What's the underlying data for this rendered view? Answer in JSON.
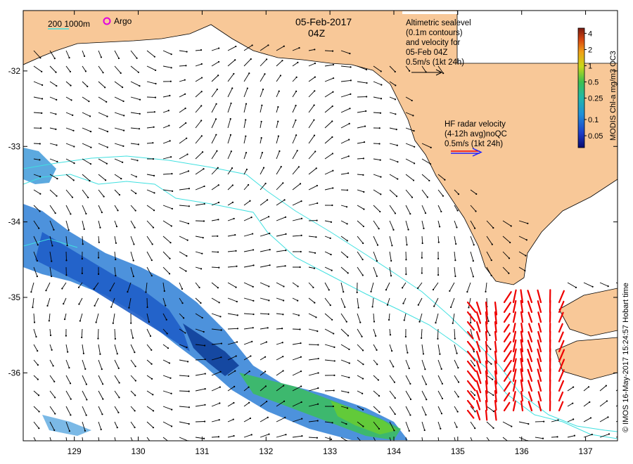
{
  "header": {
    "date": "05-Feb-2017",
    "time": "04Z"
  },
  "legend": {
    "isobath_text": "200  1000m",
    "argo_label": "Argo",
    "altimetry_lines": [
      "Altimetric sealevel",
      "(0.1m contours)",
      "and velocity for",
      "05-Feb 04Z",
      "0.5m/s (1kt 24h)"
    ],
    "hf_lines": [
      "HF radar velocity",
      "(4-12h avg)noQC",
      "0.5m/s (1kt 24h)"
    ]
  },
  "colorbar": {
    "title": "MODIS Chl-a mg/m3 OC3",
    "ticks": [
      "4",
      "2",
      "1",
      "0.5",
      "0.25",
      "0.1",
      "0.05"
    ],
    "tick_values": [
      4,
      2,
      1,
      0.5,
      0.25,
      0.1,
      0.05
    ],
    "range": [
      0.03,
      5
    ]
  },
  "axes": {
    "lon_labels": [
      "129",
      "130",
      "131",
      "132",
      "133",
      "134",
      "135",
      "136",
      "137"
    ],
    "lon_values": [
      129,
      130,
      131,
      132,
      133,
      134,
      135,
      136,
      137
    ],
    "lat_labels": [
      "-32",
      "-33",
      "-34",
      "-35",
      "-36"
    ],
    "lat_values": [
      -32,
      -33,
      -34,
      -35,
      -36
    ],
    "lon_range": [
      128.2,
      137.5
    ],
    "lat_range": [
      -36.9,
      -31.2
    ]
  },
  "credit": "© IMOS 16-May-2017 15:24:57 Hobart time",
  "colors": {
    "land": "#f8c898",
    "isobath": "#40e0e0",
    "hf_arrow": "#ee0000",
    "argo": "#e000e0",
    "alt_arrow": "#000000"
  }
}
